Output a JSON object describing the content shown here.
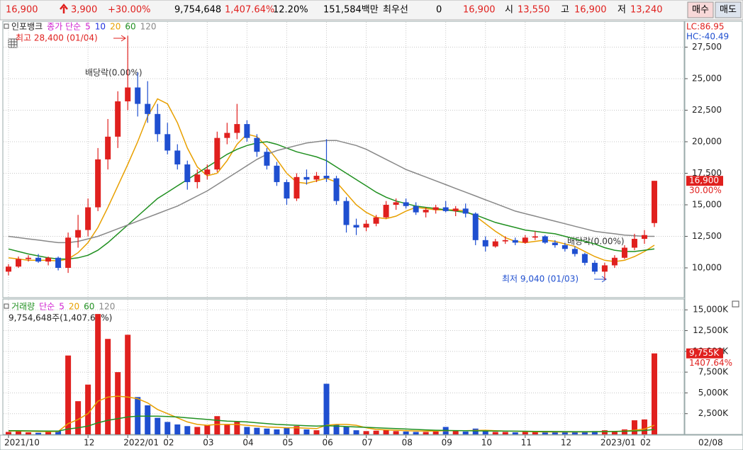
{
  "header": {
    "items": [
      {
        "text": "16,900",
        "color": "#e0201e"
      },
      {
        "text": "3,900",
        "color": "#e0201e"
      },
      {
        "text": "+30.00%",
        "color": "#e0201e"
      },
      {
        "text": "9,754,648",
        "color": "#000000"
      },
      {
        "text": "1,407.64%",
        "color": "#e0201e"
      },
      {
        "text": "12.20%",
        "color": "#000000"
      },
      {
        "text": "151,584백만",
        "color": "#000000"
      },
      {
        "text": "최우선",
        "color": "#000000"
      },
      {
        "text": "0",
        "color": "#000000"
      },
      {
        "text": "16,900",
        "color": "#e0201e"
      },
      {
        "text": "시",
        "color": "#000000"
      },
      {
        "text": "13,550",
        "color": "#e0201e"
      },
      {
        "text": "고",
        "color": "#000000"
      },
      {
        "text": "16,900",
        "color": "#e0201e"
      },
      {
        "text": "저",
        "color": "#000000"
      },
      {
        "text": "13,240",
        "color": "#e0201e"
      }
    ],
    "buy": "매수",
    "sell": "매도"
  },
  "chart_data": {
    "type": "candlestick",
    "title": "인포뱅크",
    "ma_label": "종가 단순",
    "ma_legend_extra": [
      {
        "label": "5",
        "color": "#d020d0"
      },
      {
        "label": "10",
        "color": "#2030e0"
      }
    ],
    "up_color": "#e0201e",
    "down_color": "#1f4fd0",
    "categories": [
      "2021/10",
      null,
      null,
      null,
      null,
      null,
      null,
      null,
      "12",
      null,
      null,
      null,
      "2022/01",
      null,
      null,
      null,
      "02",
      null,
      null,
      null,
      "03",
      null,
      null,
      null,
      "04",
      null,
      null,
      null,
      "05",
      null,
      null,
      null,
      "06",
      null,
      null,
      null,
      "07",
      null,
      null,
      null,
      "08",
      null,
      null,
      null,
      "09",
      null,
      null,
      null,
      "10",
      null,
      null,
      null,
      "11",
      null,
      null,
      null,
      "12",
      null,
      null,
      null,
      "2023/01",
      null,
      null,
      null,
      "02",
      null
    ],
    "current_date": "02/08",
    "candles": [
      [
        9700,
        10300,
        9400,
        10100
      ],
      [
        10100,
        10900,
        10000,
        10700
      ],
      [
        10700,
        11000,
        10500,
        10800
      ],
      [
        10800,
        11100,
        10400,
        10500
      ],
      [
        10500,
        10900,
        10200,
        10800
      ],
      [
        10800,
        10900,
        9800,
        10000
      ],
      [
        10000,
        12800,
        9600,
        12400
      ],
      [
        12400,
        14200,
        11600,
        13000
      ],
      [
        13000,
        15500,
        12500,
        14800
      ],
      [
        14800,
        19500,
        14500,
        18600
      ],
      [
        18600,
        21800,
        17800,
        20400
      ],
      [
        20400,
        24000,
        19500,
        23200
      ],
      [
        23200,
        28400,
        22500,
        24300
      ],
      [
        24300,
        25500,
        22000,
        23000
      ],
      [
        23000,
        24800,
        21500,
        22200
      ],
      [
        22200,
        23000,
        20000,
        20600
      ],
      [
        20600,
        21500,
        19000,
        19300
      ],
      [
        19300,
        19800,
        17800,
        18200
      ],
      [
        18200,
        18500,
        16200,
        16800
      ],
      [
        16800,
        17800,
        16300,
        17400
      ],
      [
        17400,
        18200,
        17000,
        17800
      ],
      [
        17800,
        20800,
        17600,
        20300
      ],
      [
        20300,
        21500,
        19800,
        20700
      ],
      [
        20700,
        23000,
        20200,
        21400
      ],
      [
        21400,
        21700,
        20000,
        20300
      ],
      [
        20300,
        20600,
        18800,
        19200
      ],
      [
        19200,
        19500,
        17800,
        18100
      ],
      [
        18100,
        18400,
        16500,
        16800
      ],
      [
        16800,
        17000,
        15000,
        15500
      ],
      [
        15500,
        17500,
        15300,
        17200
      ],
      [
        17200,
        17800,
        16600,
        17000
      ],
      [
        17000,
        17600,
        16800,
        17300
      ],
      [
        17300,
        20200,
        16800,
        17100
      ],
      [
        17100,
        17300,
        15000,
        15300
      ],
      [
        15300,
        15600,
        12800,
        13400
      ],
      [
        13400,
        13900,
        12600,
        13200
      ],
      [
        13200,
        13800,
        12900,
        13500
      ],
      [
        13500,
        14200,
        13300,
        14000
      ],
      [
        14000,
        15300,
        13900,
        15000
      ],
      [
        15000,
        15500,
        14600,
        15200
      ],
      [
        15200,
        15500,
        14700,
        14900
      ],
      [
        14900,
        15200,
        14200,
        14400
      ],
      [
        14400,
        14800,
        14000,
        14600
      ],
      [
        14600,
        15000,
        14300,
        14800
      ],
      [
        14800,
        15300,
        14400,
        14500
      ],
      [
        14500,
        14900,
        14100,
        14700
      ],
      [
        14700,
        15100,
        14000,
        14300
      ],
      [
        14300,
        14400,
        11800,
        12200
      ],
      [
        12200,
        12500,
        11300,
        11700
      ],
      [
        11700,
        12300,
        11600,
        12100
      ],
      [
        12100,
        12500,
        11900,
        12200
      ],
      [
        12200,
        12400,
        11800,
        12000
      ],
      [
        12000,
        12600,
        11900,
        12400
      ],
      [
        12400,
        12900,
        12200,
        12500
      ],
      [
        12500,
        12600,
        11900,
        12000
      ],
      [
        12000,
        12200,
        11600,
        11800
      ],
      [
        11800,
        12000,
        11300,
        11500
      ],
      [
        11500,
        11700,
        10900,
        11100
      ],
      [
        11100,
        11200,
        10200,
        10400
      ],
      [
        10400,
        10600,
        9500,
        9700
      ],
      [
        9700,
        10400,
        9040,
        10200
      ],
      [
        10200,
        11000,
        10000,
        10800
      ],
      [
        10800,
        11800,
        10700,
        11600
      ],
      [
        11600,
        12700,
        11400,
        12300
      ],
      [
        12300,
        13000,
        11900,
        12600
      ],
      [
        13550,
        16900,
        13240,
        16900
      ]
    ],
    "ma_series": [
      {
        "name": "20",
        "color": "#e8a000",
        "values": [
          10800,
          10700,
          10600,
          10600,
          10600,
          10550,
          10700,
          11200,
          12000,
          13200,
          14800,
          16500,
          18200,
          20000,
          22000,
          23400,
          23000,
          21500,
          19500,
          18000,
          17300,
          17500,
          18500,
          19800,
          20600,
          20400,
          19600,
          18600,
          17500,
          16800,
          16700,
          16900,
          17100,
          16800,
          15900,
          15000,
          14400,
          14000,
          13900,
          14100,
          14500,
          14800,
          14700,
          14600,
          14600,
          14600,
          14500,
          14100,
          13500,
          12900,
          12400,
          12100,
          12000,
          12100,
          12200,
          12100,
          11900,
          11700,
          11300,
          10900,
          10600,
          10500,
          10600,
          10900,
          11300,
          11800
        ]
      },
      {
        "name": "60",
        "color": "#209020",
        "values": [
          11500,
          11300,
          11100,
          10950,
          10800,
          10700,
          10700,
          10800,
          11000,
          11400,
          12000,
          12700,
          13400,
          14100,
          14800,
          15500,
          16000,
          16500,
          17000,
          17500,
          18000,
          18500,
          19000,
          19400,
          19700,
          19900,
          20000,
          19800,
          19500,
          19200,
          19000,
          18800,
          18500,
          18000,
          17500,
          17000,
          16500,
          16000,
          15600,
          15300,
          15100,
          14900,
          14800,
          14700,
          14600,
          14500,
          14400,
          14200,
          13900,
          13600,
          13400,
          13200,
          13000,
          12900,
          12800,
          12700,
          12500,
          12300,
          12100,
          11900,
          11600,
          11400,
          11300,
          11300,
          11400,
          11500
        ]
      },
      {
        "name": "120",
        "color": "#888888",
        "values": [
          12500,
          12400,
          12300,
          12200,
          12100,
          12000,
          12000,
          12100,
          12300,
          12500,
          12800,
          13100,
          13400,
          13700,
          14000,
          14300,
          14600,
          14900,
          15300,
          15700,
          16100,
          16600,
          17100,
          17600,
          18100,
          18600,
          19000,
          19300,
          19500,
          19700,
          19900,
          20000,
          20100,
          20100,
          19900,
          19700,
          19400,
          19000,
          18600,
          18200,
          17800,
          17500,
          17200,
          16900,
          16600,
          16300,
          16000,
          15700,
          15400,
          15100,
          14800,
          14500,
          14300,
          14100,
          13900,
          13700,
          13500,
          13300,
          13100,
          12900,
          12800,
          12700,
          12600,
          12550,
          12500,
          12500
        ]
      }
    ],
    "ylim": [
      7640,
      29550
    ],
    "yticks": [
      {
        "value": 10000,
        "label": "10,000"
      },
      {
        "value": 12500,
        "label": "12,500"
      },
      {
        "value": 15000,
        "label": "15,000"
      },
      {
        "value": 17500,
        "label": "17,500"
      },
      {
        "value": 20000,
        "label": "20,000"
      },
      {
        "value": 22500,
        "label": "22,500"
      },
      {
        "value": 25000,
        "label": "25,000"
      },
      {
        "value": 27500,
        "label": "27,500"
      }
    ],
    "last_price": {
      "value": 16900,
      "label": "16,900"
    },
    "last_change": "30.00%",
    "lc": "LC:86.95",
    "hc": "HC:-40.49",
    "annotations": {
      "high": "최고 28,400 (01/04)",
      "low": "최저 9,040 (01/03)",
      "dividend1": "배당락(0.00%)",
      "dividend2": "배당락(0.00%)"
    },
    "volume_title": "거래량",
    "volume_ma_label": "단순",
    "volume_summary": "9,754,648주(1,407.64%)",
    "volume_legend_extra": [
      {
        "label": "5",
        "color": "#d020d0"
      },
      {
        "label": "120",
        "color": "#888888"
      }
    ],
    "volume": [
      300,
      350,
      250,
      200,
      300,
      400,
      9500,
      4000,
      6000,
      14500,
      11500,
      7500,
      12000,
      4500,
      3500,
      2000,
      1500,
      1200,
      1000,
      900,
      1100,
      2200,
      1200,
      1500,
      900,
      800,
      700,
      600,
      800,
      1000,
      600,
      500,
      6100,
      1200,
      900,
      500,
      400,
      450,
      600,
      400,
      350,
      300,
      300,
      350,
      900,
      400,
      350,
      700,
      500,
      300,
      300,
      250,
      300,
      350,
      250,
      300,
      300,
      250,
      350,
      400,
      500,
      400,
      600,
      1700,
      1800,
      9755
    ],
    "volume_ma_series": [
      {
        "name": "20",
        "color": "#e8a000",
        "values": [
          400,
          400,
          380,
          350,
          340,
          350,
          1300,
          1800,
          2500,
          4000,
          4500,
          4600,
          4500,
          4300,
          3800,
          3000,
          2500,
          2000,
          1500,
          1200,
          1100,
          1200,
          1200,
          1200,
          1100,
          1000,
          900,
          850,
          800,
          800,
          750,
          700,
          1100,
          1200,
          1200,
          1100,
          800,
          600,
          550,
          500,
          450,
          420,
          400,
          400,
          450,
          450,
          450,
          480,
          500,
          450,
          400,
          380,
          350,
          320,
          300,
          300,
          300,
          300,
          300,
          320,
          340,
          360,
          400,
          500,
          650,
          1100
        ]
      },
      {
        "name": "60",
        "color": "#209020",
        "values": [
          450,
          440,
          430,
          420,
          410,
          400,
          650,
          800,
          1000,
          1400,
          1700,
          1900,
          2100,
          2200,
          2200,
          2200,
          2150,
          2100,
          2000,
          1900,
          1800,
          1700,
          1600,
          1550,
          1500,
          1400,
          1300,
          1200,
          1150,
          1100,
          1050,
          1000,
          1050,
          1000,
          950,
          900,
          850,
          800,
          750,
          700,
          650,
          600,
          550,
          500,
          480,
          460,
          440,
          430,
          420,
          410,
          400,
          390,
          380,
          370,
          360,
          350,
          340,
          330,
          330,
          330,
          340,
          350,
          380,
          420,
          470,
          600
        ]
      }
    ],
    "vol_ylim": [
      0,
      16300
    ],
    "vol_ticks": [
      {
        "value": 2500,
        "label": "2,500K"
      },
      {
        "value": 5000,
        "label": "5,000K"
      },
      {
        "value": 7500,
        "label": "7,500K"
      },
      {
        "value": 10000,
        "label": "10,000K"
      },
      {
        "value": 12500,
        "label": "12,500K"
      },
      {
        "value": 15000,
        "label": "15,000K"
      }
    ],
    "last_volume": {
      "value": 9755,
      "label": "9,755K"
    },
    "last_volume_change": "1407.64%",
    "grid": true
  }
}
